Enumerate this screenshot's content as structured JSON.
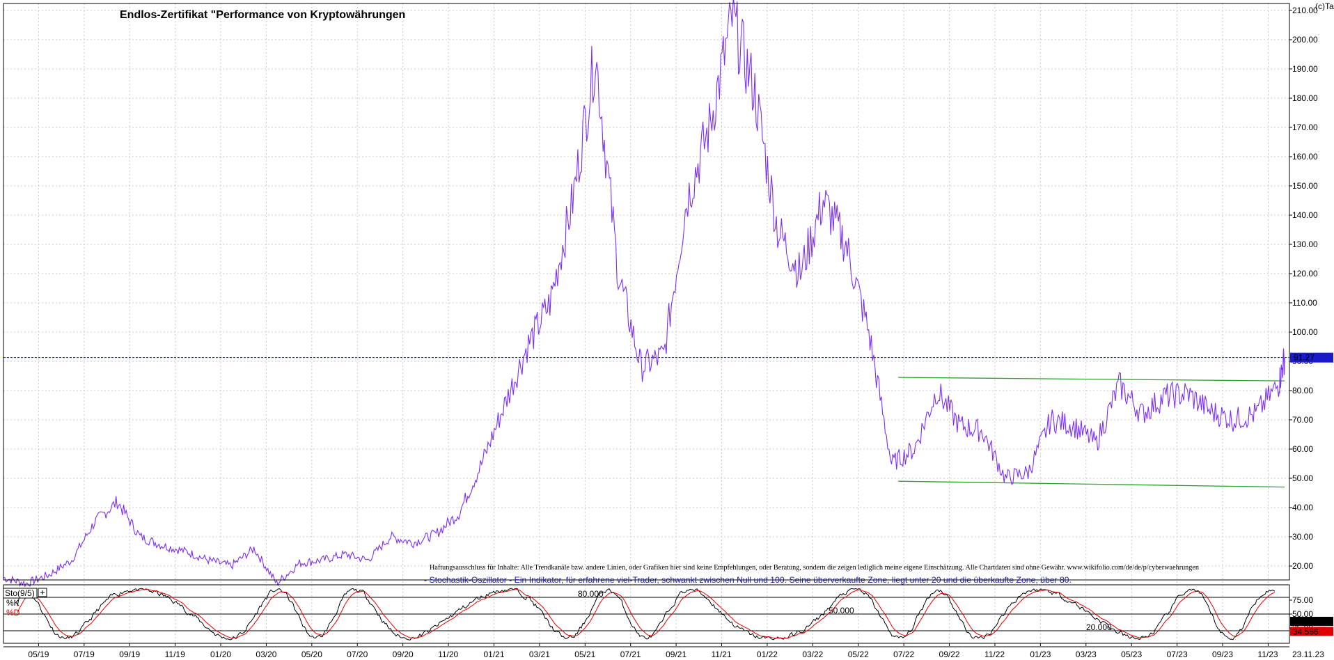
{
  "header": {
    "title": "Endlos-Zertifikat \"Performance von Kryptowährungen",
    "copyright": "(c)Tai-Pan"
  },
  "colors": {
    "price": "#7b2ff7",
    "channel": "#2ea02e",
    "last_line": "#1a1ac8",
    "stoch_k": "#000000",
    "stoch_d": "#e00000",
    "grid": "#c8c8c8"
  },
  "notes": {
    "disclaimer": "Haftungsausschluss für Inhalte: Alle Trendkanäle bzw. andere Linien, oder Grafiken hier sind keine Empfehlungen, oder Beratung, sondern die zeigen lediglich meine eigene Einschätzung. Alle Chartdaten sind ohne Gewähr. www.wikifolio.com/de/de/p/cyberwaehrungen",
    "oscillator": "- Stochastik-Oszillator - Ein Indikator, für erfahrene viel-Trader, schwankt zwischen Null und 100. Seine überverkaufte Zone, liegt unter 20 und die überkaufte Zone, über 80."
  },
  "chart_data": [
    {
      "type": "line",
      "series": [
        {
          "name": "",
          "x": [
            "2019-03",
            "2019-04",
            "2019-05",
            "2019-06",
            "2019-07",
            "2019-08",
            "2019-09",
            "2019-10",
            "2019-11",
            "2019-12",
            "2020-01",
            "2020-02",
            "2020-03",
            "2020-04",
            "2020-05",
            "2020-06",
            "2020-07",
            "2020-08",
            "2020-09",
            "2020-10",
            "2020-11",
            "2020-12",
            "2021-01",
            "2021-02",
            "2021-03",
            "2021-04",
            "2021-05",
            "2021-06",
            "2021-07",
            "2021-08",
            "2021-09",
            "2021-10",
            "2021-11",
            "2021-12",
            "2022-01",
            "2022-02",
            "2022-03",
            "2022-04",
            "2022-05",
            "2022-06",
            "2022-07",
            "2022-08",
            "2022-09",
            "2022-10",
            "2022-11",
            "2022-12",
            "2023-01",
            "2023-02",
            "2023-03",
            "2023-04",
            "2023-05",
            "2023-06",
            "2023-07",
            "2023-08",
            "2023-09",
            "2023-10",
            "2023-11",
            "2023-11-23"
          ],
          "values": [
            16,
            14,
            17,
            22,
            35,
            42,
            30,
            27,
            25,
            22,
            20,
            26,
            14,
            21,
            22,
            24,
            22,
            30,
            28,
            31,
            38,
            55,
            75,
            95,
            110,
            145,
            195,
            120,
            88,
            92,
            145,
            170,
            207,
            182,
            135,
            120,
            145,
            130,
            100,
            55,
            60,
            80,
            68,
            66,
            50,
            52,
            70,
            68,
            62,
            82,
            72,
            78,
            79,
            73,
            70,
            72,
            82,
            91.27
          ]
        }
      ],
      "y_ticks": [
        "20.00",
        "30.00",
        "40.00",
        "50.00",
        "60.00",
        "70.00",
        "80.00",
        "90.00",
        "100.00",
        "110.00",
        "120.00",
        "130.00",
        "140.00",
        "150.00",
        "160.00",
        "170.00",
        "180.00",
        "190.00",
        "200.00",
        "210.00"
      ],
      "x_ticks": [
        "05/19",
        "07/19",
        "09/19",
        "11/19",
        "01/20",
        "03/20",
        "05/20",
        "07/20",
        "09/20",
        "11/20",
        "01/21",
        "03/21",
        "05/21",
        "07/21",
        "09/21",
        "11/21",
        "01/22",
        "03/22",
        "05/22",
        "07/22",
        "09/22",
        "11/22",
        "01/23",
        "03/23",
        "05/23",
        "07/23",
        "09/23",
        "11/23"
      ],
      "x_last_label": "23.11.23",
      "last_value": "91.27",
      "ylim": [
        13,
        212
      ],
      "trend_channel": {
        "upper": [
          {
            "x": "2022-06-24",
            "y": 84.5
          },
          {
            "x": "2023-11-23",
            "y": 83.3
          }
        ],
        "lower": [
          {
            "x": "2022-06-24",
            "y": 49.0
          },
          {
            "x": "2023-11-23",
            "y": 47.0
          }
        ]
      },
      "grid": true
    },
    {
      "type": "line",
      "indicator": "Sto(9/5)",
      "series": [
        {
          "name": "%K",
          "last": "36.343"
        },
        {
          "name": "%D",
          "last": "34.566"
        }
      ],
      "levels": [
        "80.000",
        "50.000",
        "20.000"
      ],
      "y_ticks": [
        "75.00",
        "50.00",
        "25.00"
      ],
      "ylim": [
        0,
        100
      ]
    }
  ]
}
